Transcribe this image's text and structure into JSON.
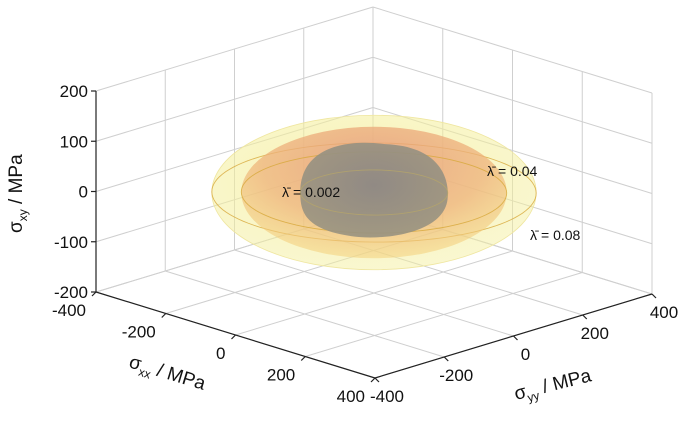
{
  "chart_data": {
    "type": "surface3d",
    "x_axis": {
      "label_symbol": "σ",
      "label_sub": "xx",
      "label_unit": " / MPa",
      "range": [
        -400,
        400
      ],
      "ticks": [
        "-400",
        "-200",
        "0",
        "200",
        "400"
      ]
    },
    "y_axis": {
      "label_symbol": "σ",
      "label_sub": "yy",
      "label_unit": " / MPa",
      "range": [
        -400,
        400
      ],
      "ticks": [
        "-400",
        "-200",
        "0",
        "200",
        "400"
      ]
    },
    "z_axis": {
      "label_symbol": "σ",
      "label_sub": "xy",
      "label_unit": " / MPa",
      "range": [
        -200,
        200
      ],
      "ticks": [
        "-200",
        "-100",
        "0",
        "100",
        "200"
      ]
    },
    "grid": true,
    "surfaces": [
      {
        "name_symbol": "λ̄",
        "name_value": "= 0.08",
        "semi_axes": {
          "xx": 330,
          "yy": 330,
          "xy": 110
        },
        "color": "#f2d77a"
      },
      {
        "name_symbol": "λ̄",
        "name_value": "= 0.04",
        "semi_axes": {
          "xx": 270,
          "yy": 270,
          "xy": 100
        },
        "color": "#e6a07a"
      },
      {
        "name_symbol": "λ̄",
        "name_value": "= 0.002",
        "semi_axes": {
          "xx": 150,
          "yy": 150,
          "xy": 85
        },
        "color": "#8f8a86"
      }
    ]
  }
}
